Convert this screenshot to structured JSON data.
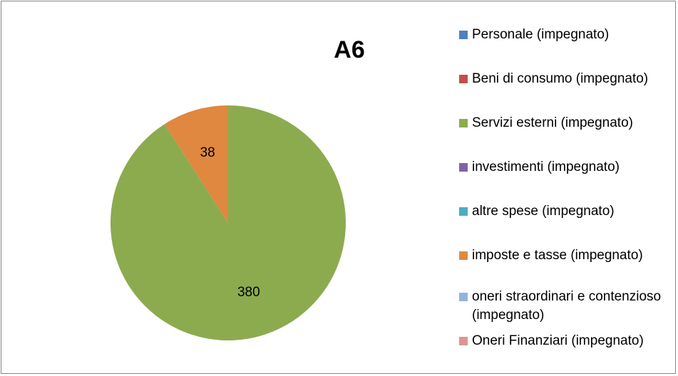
{
  "chart_data": {
    "type": "pie",
    "title": "A6",
    "categories": [
      "Personale (impegnato)",
      "Beni di consumo (impegnato)",
      "Servizi esterni (impegnato)",
      "investimenti (impegnato)",
      "altre spese (impegnato)",
      "imposte e tasse (impegnato)",
      "oneri straordinari e contenzioso (impegnato)",
      "Oneri Finanziari (impegnato)"
    ],
    "values": [
      0,
      0,
      380,
      0,
      0,
      38,
      0,
      0
    ],
    "colors": [
      "#4f81bd",
      "#c0504d",
      "#8cab4f",
      "#8064a2",
      "#4bacc6",
      "#e0883f",
      "#95b3d7",
      "#d99694"
    ],
    "legend": "right"
  }
}
